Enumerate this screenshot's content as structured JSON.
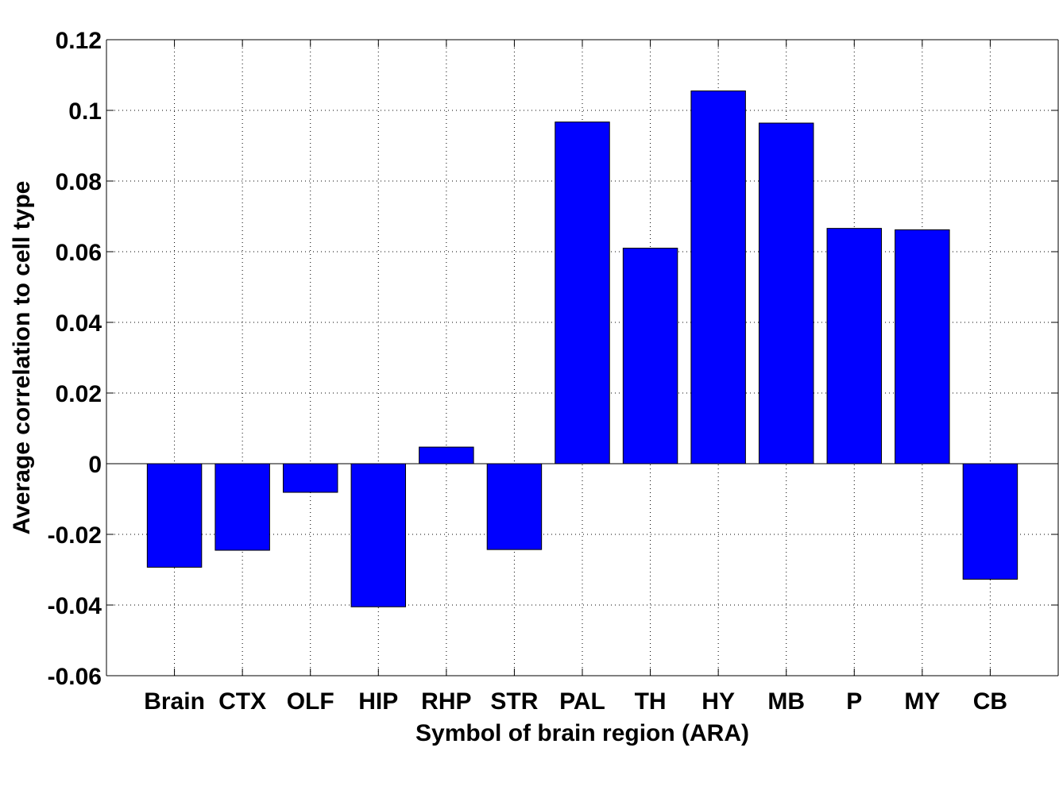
{
  "chart_data": {
    "type": "bar",
    "title": "",
    "xlabel": "Symbol of brain region (ARA)",
    "ylabel": "Average correlation to cell type",
    "categories": [
      "Brain",
      "CTX",
      "OLF",
      "HIP",
      "RHP",
      "STR",
      "PAL",
      "TH",
      "HY",
      "MB",
      "P",
      "MY",
      "CB"
    ],
    "values": [
      -0.0293,
      -0.0245,
      -0.0081,
      -0.0405,
      0.0047,
      -0.0243,
      0.0967,
      0.061,
      0.1055,
      0.0964,
      0.0666,
      0.0662,
      -0.0327
    ],
    "ylim": [
      -0.06,
      0.12
    ],
    "yticks": [
      "-0.06",
      "-0.04",
      "-0.02",
      "0",
      "0.02",
      "0.04",
      "0.06",
      "0.08",
      "0.1",
      "0.12"
    ],
    "grid": true,
    "bar_color": "#0000ff",
    "legend": "none"
  }
}
